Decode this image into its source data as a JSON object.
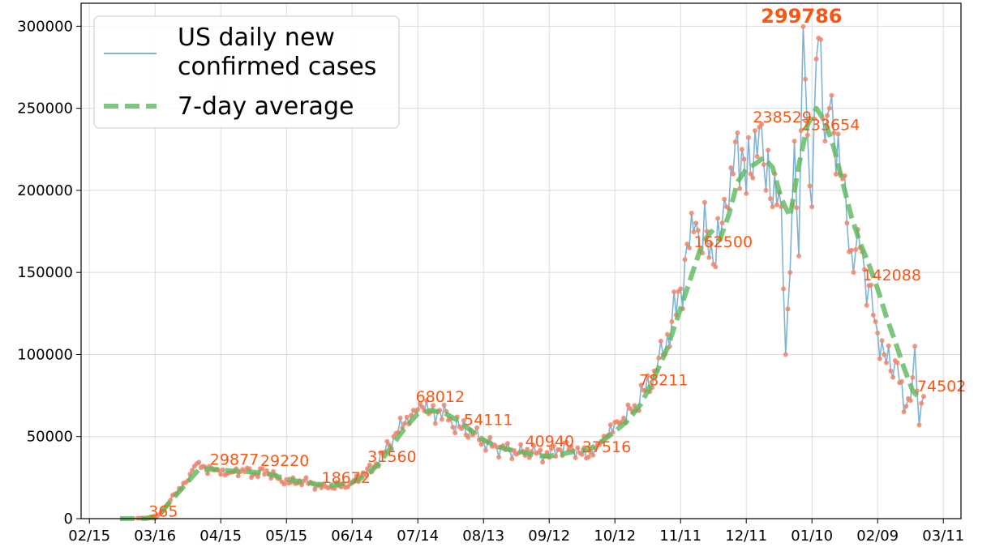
{
  "chart_data": {
    "type": "line",
    "start_date": "2020-02-29",
    "x_ticks": [
      "02/15",
      "03/16",
      "04/15",
      "05/15",
      "06/14",
      "07/14",
      "08/13",
      "09/12",
      "10/12",
      "11/11",
      "12/11",
      "01/10",
      "02/09",
      "03/11"
    ],
    "y_ticks": [
      "0",
      "50000",
      "100000",
      "150000",
      "200000",
      "250000",
      "300000"
    ],
    "ylim": [
      0,
      314000
    ],
    "grid": true,
    "legend_position": "top-left",
    "series": [
      {
        "name": "US daily new confirmed cases",
        "color": "#7fb3d5",
        "style": "thin-line-with-dots"
      },
      {
        "name": "7-day average",
        "color": "#5cb85c",
        "style": "thick-dashed"
      }
    ],
    "annotations": [
      {
        "text": "365",
        "day": 16,
        "value": 365,
        "bold": false
      },
      {
        "text": "29877",
        "day": 44,
        "value": 29877,
        "bold": false
      },
      {
        "text": "29220",
        "day": 67,
        "value": 29220,
        "bold": false
      },
      {
        "text": "18672",
        "day": 95,
        "value": 18672,
        "bold": false
      },
      {
        "text": "31560",
        "day": 116,
        "value": 31560,
        "bold": false
      },
      {
        "text": "68012",
        "day": 138,
        "value": 68012,
        "bold": false
      },
      {
        "text": "54111",
        "day": 160,
        "value": 54111,
        "bold": false
      },
      {
        "text": "40940",
        "day": 188,
        "value": 40940,
        "bold": false
      },
      {
        "text": "37516",
        "day": 214,
        "value": 37516,
        "bold": false
      },
      {
        "text": "78211",
        "day": 240,
        "value": 78211,
        "bold": false
      },
      {
        "text": "162500",
        "day": 265,
        "value": 162500,
        "bold": false
      },
      {
        "text": "238529",
        "day": 292,
        "value": 238529,
        "bold": false
      },
      {
        "text": "299786",
        "day": 312,
        "value": 299786,
        "bold": true
      },
      {
        "text": "233654",
        "day": 314,
        "value": 233654,
        "bold": false
      },
      {
        "text": "142088",
        "day": 342,
        "value": 142088,
        "bold": false
      },
      {
        "text": "74502",
        "day": 367,
        "value": 74502,
        "bold": false
      }
    ],
    "daily_anchors": [
      [
        0,
        0
      ],
      [
        10,
        300
      ],
      [
        16,
        365
      ],
      [
        20,
        5000
      ],
      [
        25,
        15000
      ],
      [
        30,
        22000
      ],
      [
        34,
        32000
      ],
      [
        38,
        32000
      ],
      [
        44,
        29877
      ],
      [
        50,
        28000
      ],
      [
        56,
        30000
      ],
      [
        62,
        27000
      ],
      [
        67,
        29220
      ],
      [
        73,
        24000
      ],
      [
        78,
        22000
      ],
      [
        84,
        23000
      ],
      [
        90,
        20000
      ],
      [
        95,
        18672
      ],
      [
        100,
        20000
      ],
      [
        105,
        21000
      ],
      [
        110,
        26000
      ],
      [
        116,
        31560
      ],
      [
        120,
        40000
      ],
      [
        125,
        50000
      ],
      [
        130,
        58000
      ],
      [
        134,
        66000
      ],
      [
        138,
        68012
      ],
      [
        142,
        65000
      ],
      [
        146,
        66000
      ],
      [
        150,
        60000
      ],
      [
        155,
        56000
      ],
      [
        160,
        54111
      ],
      [
        164,
        48000
      ],
      [
        170,
        44000
      ],
      [
        176,
        42000
      ],
      [
        182,
        40000
      ],
      [
        188,
        40940
      ],
      [
        194,
        38000
      ],
      [
        200,
        42000
      ],
      [
        206,
        44000
      ],
      [
        210,
        40000
      ],
      [
        214,
        37516
      ],
      [
        218,
        45000
      ],
      [
        222,
        50000
      ],
      [
        228,
        58000
      ],
      [
        234,
        65000
      ],
      [
        240,
        78211
      ],
      [
        244,
        90000
      ],
      [
        248,
        100000
      ],
      [
        252,
        120000
      ],
      [
        256,
        140000
      ],
      [
        260,
        165000
      ],
      [
        263,
        180000
      ],
      [
        265,
        162500
      ],
      [
        268,
        175000
      ],
      [
        271,
        155000
      ],
      [
        274,
        170000
      ],
      [
        277,
        190000
      ],
      [
        280,
        210000
      ],
      [
        284,
        225000
      ],
      [
        288,
        210000
      ],
      [
        292,
        238529
      ],
      [
        295,
        200000
      ],
      [
        299,
        210000
      ],
      [
        302,
        190000
      ],
      [
        304,
        100000
      ],
      [
        306,
        150000
      ],
      [
        308,
        230000
      ],
      [
        310,
        160000
      ],
      [
        312,
        299786
      ],
      [
        314,
        233654
      ],
      [
        316,
        190000
      ],
      [
        318,
        280000
      ],
      [
        320,
        292000
      ],
      [
        322,
        230000
      ],
      [
        324,
        250000
      ],
      [
        326,
        235000
      ],
      [
        329,
        210000
      ],
      [
        332,
        180000
      ],
      [
        335,
        150000
      ],
      [
        338,
        165000
      ],
      [
        342,
        142088
      ],
      [
        345,
        120000
      ],
      [
        349,
        100000
      ],
      [
        352,
        90000
      ],
      [
        355,
        95000
      ],
      [
        358,
        65000
      ],
      [
        361,
        72000
      ],
      [
        363,
        105000
      ],
      [
        365,
        57000
      ],
      [
        367,
        74502
      ]
    ],
    "avg_anchors": [
      [
        0,
        0
      ],
      [
        12,
        100
      ],
      [
        18,
        2500
      ],
      [
        24,
        12000
      ],
      [
        30,
        21000
      ],
      [
        36,
        30000
      ],
      [
        44,
        30000
      ],
      [
        52,
        29000
      ],
      [
        60,
        28500
      ],
      [
        67,
        27500
      ],
      [
        74,
        25000
      ],
      [
        82,
        22500
      ],
      [
        90,
        21000
      ],
      [
        98,
        20500
      ],
      [
        106,
        22000
      ],
      [
        112,
        26000
      ],
      [
        118,
        33000
      ],
      [
        124,
        44000
      ],
      [
        130,
        55000
      ],
      [
        136,
        64000
      ],
      [
        142,
        66000
      ],
      [
        148,
        64500
      ],
      [
        154,
        60000
      ],
      [
        160,
        54000
      ],
      [
        166,
        48000
      ],
      [
        172,
        44000
      ],
      [
        178,
        42000
      ],
      [
        184,
        40500
      ],
      [
        190,
        38500
      ],
      [
        196,
        38000
      ],
      [
        202,
        39500
      ],
      [
        208,
        41000
      ],
      [
        214,
        42000
      ],
      [
        220,
        47000
      ],
      [
        226,
        53000
      ],
      [
        232,
        60000
      ],
      [
        238,
        70000
      ],
      [
        244,
        86000
      ],
      [
        250,
        104000
      ],
      [
        256,
        128000
      ],
      [
        262,
        152000
      ],
      [
        266,
        168000
      ],
      [
        270,
        175000
      ],
      [
        274,
        170000
      ],
      [
        278,
        185000
      ],
      [
        282,
        205000
      ],
      [
        286,
        213000
      ],
      [
        290,
        216000
      ],
      [
        294,
        220000
      ],
      [
        298,
        214000
      ],
      [
        302,
        195000
      ],
      [
        306,
        184000
      ],
      [
        310,
        215000
      ],
      [
        314,
        240000
      ],
      [
        318,
        250000
      ],
      [
        322,
        242000
      ],
      [
        326,
        226000
      ],
      [
        330,
        205000
      ],
      [
        334,
        184000
      ],
      [
        338,
        168000
      ],
      [
        342,
        155000
      ],
      [
        346,
        140000
      ],
      [
        350,
        123000
      ],
      [
        354,
        108000
      ],
      [
        358,
        92000
      ],
      [
        362,
        78000
      ],
      [
        366,
        72000
      ]
    ]
  }
}
